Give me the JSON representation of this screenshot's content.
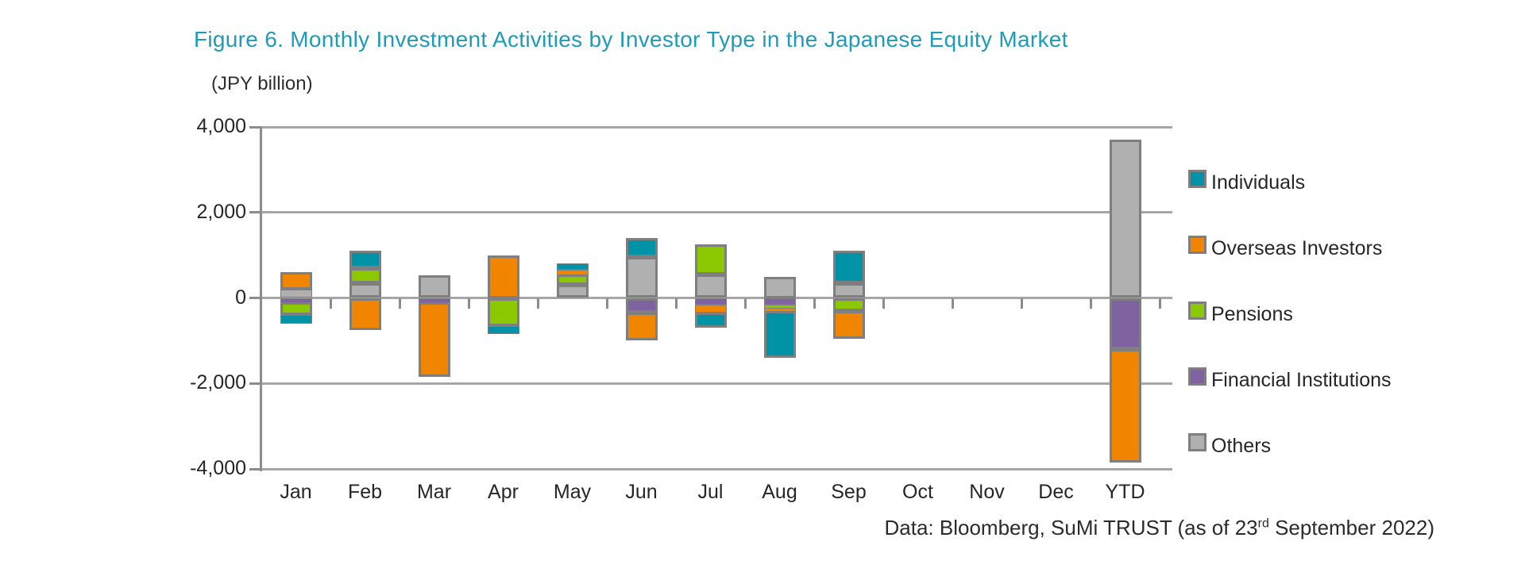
{
  "title": "Figure 6. Monthly Investment Activities by Investor Type in the Japanese Equity Market",
  "unit_label": "(JPY billion)",
  "footer": {
    "prefix": "Data: Bloomberg, SuMi TRUST (as of 23",
    "superscript": "rd",
    "suffix": " September 2022)"
  },
  "colors": {
    "title_accent": "#1e9bb9",
    "gridline": "#a6a6a6",
    "axis": "#8c8c8c",
    "bar_border": "#7f7f7f",
    "text": "#262626",
    "individuals": "#0093a8",
    "overseas_investors": "#f18500",
    "pensions": "#8cc800",
    "financial_institutions": "#7e63a0",
    "others": "#b0b0b0"
  },
  "chart_data": {
    "type": "bar",
    "stacked": true,
    "title": "Figure 6. Monthly Investment Activities by Investor Type in the Japanese Equity Market",
    "xlabel": "",
    "ylabel": "(JPY billion)",
    "categories": [
      "Jan",
      "Feb",
      "Mar",
      "Apr",
      "May",
      "Jun",
      "Jul",
      "Aug",
      "Sep",
      "Oct",
      "Nov",
      "Dec",
      "YTD"
    ],
    "series": [
      {
        "name": "Individuals",
        "color": "#0093a8",
        "values": [
          -200,
          400,
          0,
          -200,
          150,
          450,
          -350,
          -1100,
          750,
          0,
          0,
          0,
          0
        ]
      },
      {
        "name": "Overseas Investors",
        "color": "#f18500",
        "values": [
          400,
          -750,
          -1750,
          1000,
          100,
          -650,
          -200,
          -75,
          -650,
          0,
          0,
          0,
          -2650
        ]
      },
      {
        "name": "Pensions",
        "color": "#8cc800",
        "values": [
          -300,
          350,
          0,
          -650,
          250,
          0,
          700,
          -75,
          -300,
          0,
          0,
          0,
          0
        ]
      },
      {
        "name": "Financial Institutions",
        "color": "#7e63a0",
        "values": [
          -100,
          0,
          -100,
          0,
          0,
          -350,
          -150,
          -150,
          0,
          0,
          0,
          0,
          -1200
        ]
      },
      {
        "name": "Others",
        "color": "#b0b0b0",
        "values": [
          200,
          350,
          520,
          0,
          300,
          950,
          550,
          500,
          350,
          0,
          0,
          0,
          3700
        ]
      }
    ],
    "stack_order_from_zero": [
      "Others",
      "Financial Institutions",
      "Pensions",
      "Overseas Investors",
      "Individuals"
    ],
    "ylim": [
      -4000,
      4000
    ],
    "ytick_values": [
      4000,
      2000,
      0,
      -2000,
      -4000
    ],
    "ytick_labels": [
      "4,000",
      "2,000",
      "0",
      "-2,000",
      "-4,000"
    ],
    "grid": true,
    "legend_position": "right",
    "legend_entries": [
      "Individuals",
      "Overseas Investors",
      "Pensions",
      "Financial Institutions",
      "Others"
    ]
  }
}
